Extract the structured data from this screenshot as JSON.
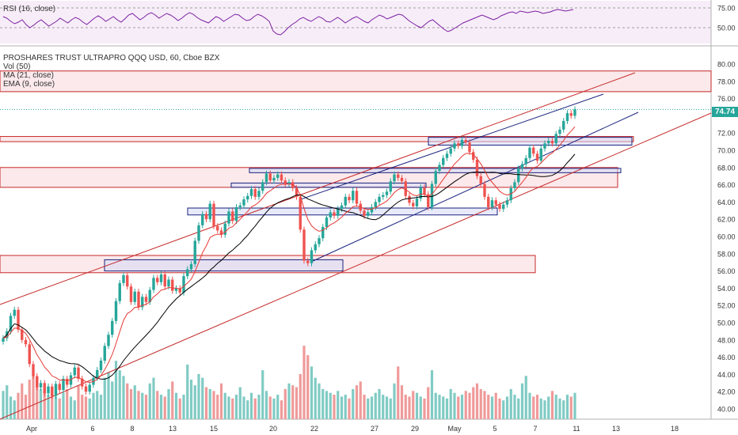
{
  "rsi_pane": {
    "legend": "RSI (16, close)",
    "levels": [
      75.0,
      50.0
    ],
    "tick_labels": [
      "75.00",
      "50.00"
    ],
    "values": [
      64,
      62,
      58,
      55,
      57,
      60,
      54,
      50,
      53,
      57,
      60,
      56,
      52,
      55,
      58,
      62,
      59,
      56,
      60,
      63,
      61,
      57,
      54,
      58,
      62,
      65,
      62,
      58,
      61,
      64,
      60,
      57,
      61,
      66,
      68,
      64,
      60,
      63,
      67,
      69,
      66,
      62,
      65,
      68,
      66,
      63,
      59,
      62,
      66,
      69,
      67,
      63,
      60,
      58,
      56,
      60,
      64,
      62,
      58,
      61,
      64,
      67,
      66,
      62,
      59,
      60,
      64,
      67,
      65,
      62,
      58,
      46,
      42,
      41,
      45,
      50,
      54,
      57,
      61,
      63,
      60,
      58,
      61,
      64,
      62,
      58,
      57,
      60,
      63,
      60,
      56,
      59,
      62,
      64,
      61,
      58,
      56,
      60,
      63,
      66,
      64,
      61,
      63,
      65,
      67,
      66,
      62,
      58,
      55,
      52,
      50,
      54,
      58,
      60,
      56,
      52,
      48,
      45,
      47,
      50,
      53,
      56,
      58,
      60,
      62,
      64,
      66,
      64,
      62,
      60,
      62,
      65,
      67,
      69,
      70,
      68,
      71,
      70,
      69,
      70,
      71,
      70,
      68,
      69,
      70,
      72,
      73,
      72,
      71,
      72,
      73
    ]
  },
  "main_pane": {
    "legend": {
      "title": "PROSHARES TRUST ULTRAPRO QQQ USD, 60, Cboe BZX",
      "lines": [
        "Vol (50)",
        "MA (21, close)",
        "EMA (9, close)"
      ]
    },
    "last_price": "74.74",
    "colors": {
      "up": "#26a69a",
      "down": "#ef5350",
      "ma": "#000000",
      "ema": "#e53935",
      "channel_red": "#c62828",
      "channel_blue": "#1a237e"
    }
  },
  "x_axis": {
    "labels": [
      "Apr",
      "6",
      "8",
      "13",
      "15",
      "20",
      "22",
      "27",
      "29",
      "May",
      "5",
      "7",
      "11",
      "13",
      "18"
    ]
  },
  "chart_data": [
    {
      "type": "line",
      "title": "RSI (16, close)",
      "ylim": [
        25,
        85
      ]
    },
    {
      "type": "candlestick",
      "title": "PROSHARES TRUST ULTRAPRO QQQ USD, 60, Cboe BZX",
      "y_tick_labels": [
        "80.00",
        "78.00",
        "76.00",
        "74.00",
        "72.00",
        "70.00",
        "68.00",
        "66.00",
        "64.00",
        "62.00",
        "60.00",
        "58.00",
        "56.00",
        "54.00",
        "52.00",
        "50.00",
        "48.00",
        "46.00",
        "44.00",
        "42.00",
        "40.00"
      ],
      "x_tick_labels": [
        "Apr",
        "6",
        "8",
        "13",
        "15",
        "20",
        "22",
        "27",
        "29",
        "May",
        "5",
        "7",
        "11",
        "13",
        "18"
      ],
      "ylim": [
        39.5,
        81.5
      ],
      "last_close": 74.74,
      "closes": [
        48.2,
        49.0,
        50.8,
        51.5,
        49.2,
        48.0,
        47.5,
        45.2,
        43.8,
        42.5,
        43.0,
        41.8,
        42.6,
        41.5,
        42.9,
        42.2,
        43.5,
        42.8,
        43.9,
        44.8,
        43.5,
        42.6,
        42.0,
        42.8,
        43.6,
        44.5,
        45.6,
        47.3,
        48.6,
        50.2,
        52.5,
        54.6,
        55.5,
        54.2,
        52.4,
        53.6,
        51.8,
        53.0,
        52.4,
        53.8,
        55.2,
        54.7,
        55.6,
        54.2,
        55.0,
        53.7,
        54.0,
        53.5,
        55.4,
        56.2,
        56.8,
        59.5,
        61.3,
        62.6,
        62.0,
        63.8,
        61.2,
        60.7,
        60.2,
        61.5,
        62.9,
        61.8,
        63.4,
        63.6,
        64.3,
        64.7,
        65.5,
        64.6,
        65.3,
        66.3,
        67.3,
        66.5,
        66.8,
        67.2,
        66.5,
        66.1,
        66.3,
        65.6,
        64.6,
        60.8,
        57.2,
        56.9,
        58.4,
        59.1,
        59.8,
        61.1,
        62.2,
        62.8,
        62.4,
        63.2,
        63.6,
        64.6,
        64.2,
        65.3,
        63.8,
        63.0,
        62.4,
        62.8,
        63.4,
        64.0,
        64.6,
        64.8,
        65.2,
        66.4,
        67.2,
        66.8,
        66.4,
        64.7,
        63.9,
        63.5,
        64.4,
        65.7,
        64.9,
        63.4,
        66.1,
        67.6,
        68.3,
        69.1,
        69.6,
        70.2,
        70.8,
        70.5,
        71.2,
        70.9,
        69.8,
        68.9,
        67.0,
        66.1,
        64.6,
        63.4,
        64.2,
        63.7,
        63.2,
        63.7,
        64.2,
        65.6,
        66.3,
        67.9,
        68.4,
        69.1,
        70.3,
        69.6,
        68.8,
        70.2,
        70.8,
        71.1,
        70.8,
        71.9,
        72.4,
        73.4,
        74.3,
        74.0,
        74.74
      ],
      "volumes": [
        1.5,
        1.8,
        1.2,
        1.0,
        1.4,
        1.9,
        1.3,
        2.1,
        2.4,
        2.0,
        1.6,
        1.5,
        1.3,
        1.7,
        1.2,
        1.1,
        1.4,
        1.6,
        1.2,
        1.0,
        1.8,
        1.3,
        1.2,
        1.1,
        1.4,
        1.5,
        1.3,
        2.2,
        2.5,
        2.0,
        3.1,
        2.6,
        2.3,
        1.9,
        1.6,
        1.8,
        1.5,
        1.4,
        1.3,
        1.9,
        2.2,
        1.5,
        1.3,
        1.2,
        1.6,
        2.0,
        1.4,
        1.1,
        1.3,
        2.9,
        2.1,
        1.8,
        2.4,
        2.2,
        1.7,
        1.6,
        1.5,
        1.3,
        1.9,
        1.4,
        1.2,
        1.1,
        1.3,
        1.7,
        1.2,
        1.0,
        1.4,
        1.1,
        1.3,
        2.6,
        1.5,
        1.2,
        1.1,
        1.3,
        1.0,
        1.6,
        1.9,
        1.8,
        1.7,
        2.4,
        3.9,
        3.4,
        2.8,
        2.2,
        1.9,
        1.6,
        1.5,
        1.4,
        1.3,
        1.5,
        1.2,
        1.3,
        1.1,
        1.6,
        1.8,
        2.0,
        1.3,
        1.1,
        1.2,
        1.4,
        1.6,
        1.3,
        1.2,
        1.1,
        1.9,
        2.8,
        1.8,
        1.3,
        1.2,
        1.5,
        1.4,
        1.2,
        1.1,
        1.7,
        2.6,
        1.4,
        1.3,
        1.2,
        1.1,
        1.6,
        1.4,
        1.2,
        1.3,
        1.5,
        1.4,
        1.7,
        1.9,
        1.6,
        1.5,
        1.3,
        1.2,
        1.4,
        1.1,
        1.0,
        1.2,
        1.6,
        1.3,
        1.1,
        1.9,
        2.3,
        1.4,
        1.2,
        1.3,
        1.1,
        1.0,
        1.2,
        1.5,
        1.3,
        1.1,
        1.0,
        1.3,
        1.2,
        1.4
      ]
    }
  ]
}
